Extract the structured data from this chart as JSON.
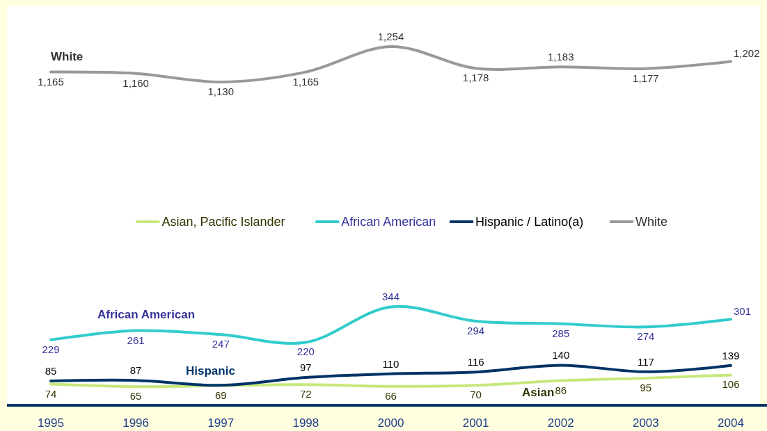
{
  "chart_data": {
    "type": "line",
    "categories": [
      "1995",
      "1996",
      "1997",
      "1998",
      "2000",
      "2001",
      "2002",
      "2003",
      "2004"
    ],
    "series": [
      {
        "name": "Asian, Pacific Islander",
        "color": "#c6e87c",
        "values": [
          74,
          65,
          69,
          72,
          66,
          70,
          86,
          95,
          106
        ],
        "value_labels": [
          "74",
          "65",
          "69",
          "72",
          "66",
          "70",
          "86",
          "95",
          "106"
        ]
      },
      {
        "name": "African American",
        "color": "#33cccc",
        "values": [
          229,
          261,
          247,
          220,
          344,
          294,
          285,
          274,
          301
        ],
        "value_labels": [
          "229",
          "261",
          "247",
          "220",
          "344",
          "294",
          "285",
          "274",
          "301"
        ]
      },
      {
        "name": "Hispanic / Latino(a)",
        "color": "#003366",
        "values": [
          85,
          87,
          70,
          97,
          110,
          116,
          140,
          117,
          139
        ],
        "value_labels": [
          "85",
          "87",
          null,
          "97",
          "110",
          "116",
          "140",
          "117",
          "139"
        ]
      },
      {
        "name": "White",
        "color": "#999999",
        "values": [
          1165,
          1160,
          1130,
          1165,
          1254,
          1178,
          1183,
          1177,
          1202
        ],
        "value_labels": [
          "1,165",
          "1,160",
          "1,130",
          "1,165",
          "1,254",
          "1,178",
          "1,183",
          "1,177",
          "1,202"
        ]
      }
    ],
    "annotations": [
      "White",
      "African American",
      "Hispanic",
      "Asian"
    ],
    "legend": "center"
  }
}
